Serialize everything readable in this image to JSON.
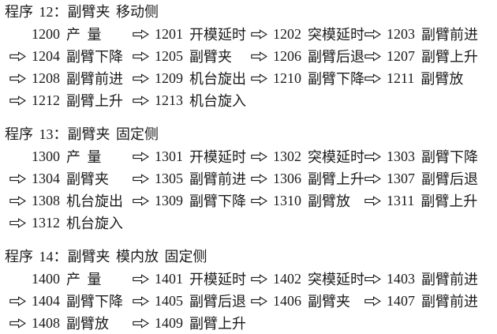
{
  "page": {
    "background": "#ffffff",
    "text_color": "#1b1b1b",
    "kind": "program-sequence-document"
  },
  "icons": {
    "flow_arrow": "rightwards-white-arrow"
  },
  "sections": [
    {
      "title": "程序 12：副臂夹 移动侧",
      "steps": [
        {
          "code": "1200",
          "label": "产 量"
        },
        {
          "code": "1201",
          "label": "开模延时"
        },
        {
          "code": "1202",
          "label": "突模延时"
        },
        {
          "code": "1203",
          "label": "副臂前进"
        },
        {
          "code": "1204",
          "label": "副臂下降"
        },
        {
          "code": "1205",
          "label": "副臂夹"
        },
        {
          "code": "1206",
          "label": "副臂后退"
        },
        {
          "code": "1207",
          "label": "副臂上升"
        },
        {
          "code": "1208",
          "label": "副臂前进"
        },
        {
          "code": "1209",
          "label": "机台旋出"
        },
        {
          "code": "1210",
          "label": "副臂下降"
        },
        {
          "code": "1211",
          "label": "副臂放"
        },
        {
          "code": "1212",
          "label": "副臂上升"
        },
        {
          "code": "1213",
          "label": "机台旋入"
        }
      ]
    },
    {
      "title": "程序 13：副臂夹 固定侧",
      "steps": [
        {
          "code": "1300",
          "label": "产 量"
        },
        {
          "code": "1301",
          "label": "开模延时"
        },
        {
          "code": "1302",
          "label": "突模延时"
        },
        {
          "code": "1303",
          "label": "副臂下降"
        },
        {
          "code": "1304",
          "label": "副臂夹"
        },
        {
          "code": "1305",
          "label": "副臂前进"
        },
        {
          "code": "1306",
          "label": "副臂上升"
        },
        {
          "code": "1307",
          "label": "副臂后退"
        },
        {
          "code": "1308",
          "label": "机台旋出"
        },
        {
          "code": "1309",
          "label": "副臂下降"
        },
        {
          "code": "1310",
          "label": "副臂放"
        },
        {
          "code": "1311",
          "label": "副臂上升"
        },
        {
          "code": "1312",
          "label": "机台旋入"
        }
      ]
    },
    {
      "title": "程序 14：副臂夹 模内放 固定侧",
      "steps": [
        {
          "code": "1400",
          "label": "产 量"
        },
        {
          "code": "1401",
          "label": "开模延时"
        },
        {
          "code": "1402",
          "label": "突模延时"
        },
        {
          "code": "1403",
          "label": "副臂前进"
        },
        {
          "code": "1404",
          "label": "副臂下降"
        },
        {
          "code": "1405",
          "label": "副臂后退"
        },
        {
          "code": "1406",
          "label": "副臂夹"
        },
        {
          "code": "1407",
          "label": "副臂前进"
        },
        {
          "code": "1408",
          "label": "副臂放"
        },
        {
          "code": "1409",
          "label": "副臂上升"
        }
      ]
    }
  ]
}
